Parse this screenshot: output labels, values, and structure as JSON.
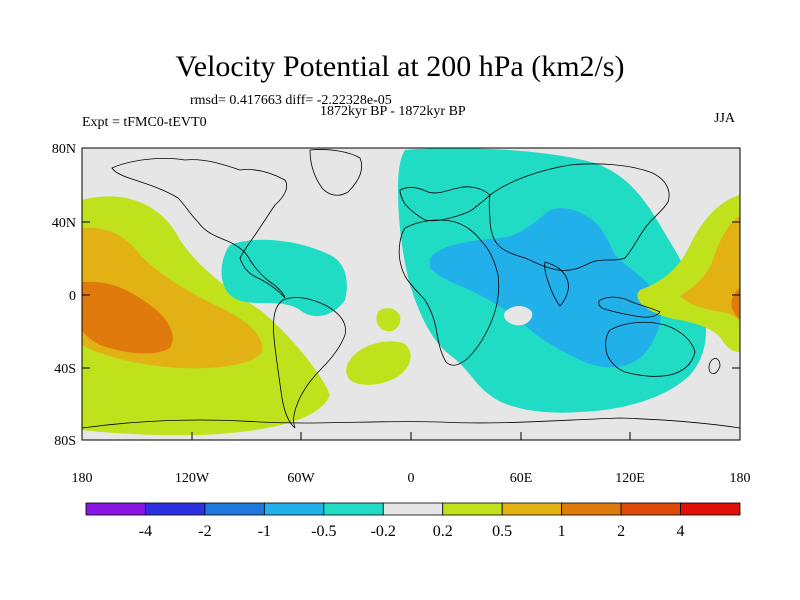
{
  "title": "Velocity Potential at 200 hPa (km2/s)",
  "stats_line": "rmsd= 0.417663 diff= -2.22328e-05",
  "period_label": "1872kyr BP - 1872kyr BP",
  "experiment_label": "Expt = tFMC0-tEVT0",
  "season_label": "JJA",
  "map": {
    "lat_ticks": [
      "80N",
      "40N",
      "0",
      "40S",
      "80S"
    ],
    "lon_ticks": [
      "180",
      "120W",
      "60W",
      "0",
      "60E",
      "120E",
      "180"
    ]
  },
  "colorbar": {
    "colors": [
      "#8a16e6",
      "#2c30e0",
      "#1e78de",
      "#22b0ea",
      "#20dcc4",
      "#e6e6e6",
      "#c0e21c",
      "#e2b214",
      "#e07a0c",
      "#e04a08",
      "#e01008"
    ],
    "labels": [
      "-4",
      "-2",
      "-1",
      "-0.5",
      "-0.2",
      "0.2",
      "0.5",
      "1",
      "2",
      "4"
    ]
  },
  "palette": {
    "neg_light": "#20dcc4",
    "neg_mid": "#22b0ea",
    "neutral": "#e6e6e6",
    "pos_light": "#c0e21c",
    "pos_mid": "#e2b214",
    "pos_strong": "#e07a0c",
    "coast": "#000000"
  }
}
